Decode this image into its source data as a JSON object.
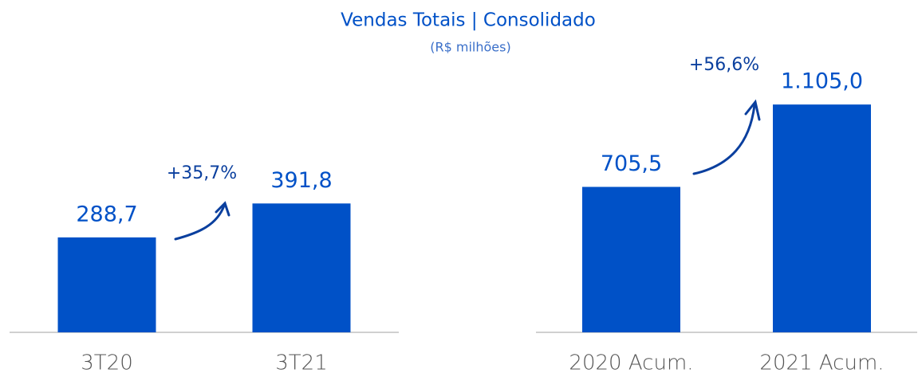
{
  "title": "Vendas Totais | Consolidado",
  "subtitle": "(R$ milhões)",
  "chart_data": [
    {
      "type": "bar",
      "categories": [
        "3T20",
        "3T21"
      ],
      "values": [
        288.7,
        391.8
      ],
      "value_labels": [
        "288,7",
        "391,8"
      ],
      "color": "#0051c7",
      "ylim": [
        0,
        865
      ],
      "annotation": "+35,7%"
    },
    {
      "type": "bar",
      "categories": [
        "2020 Acum.",
        "2021 Acum."
      ],
      "values": [
        705.5,
        1105.0
      ],
      "value_labels": [
        "705,5",
        "1.105,0"
      ],
      "color": "#0051c7",
      "ylim": [
        0,
        1380
      ],
      "annotation": "+56,6%"
    }
  ]
}
